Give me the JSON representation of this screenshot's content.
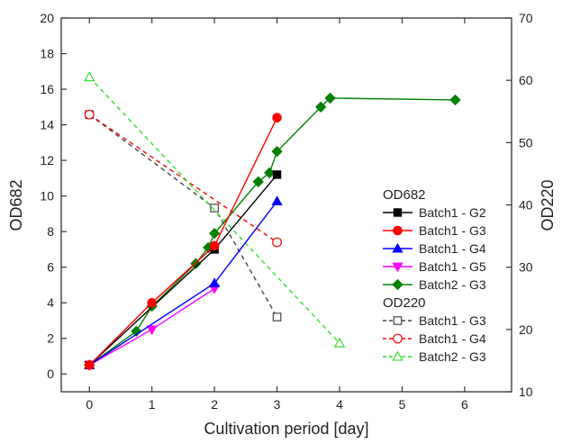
{
  "chart_data": {
    "type": "line",
    "title": "",
    "xlabel": "Cultivation period [day]",
    "ylabel_left": "OD682",
    "ylabel_right": "OD220",
    "xlim": [
      -0.45,
      6.75
    ],
    "ylim_left": [
      -1,
      20
    ],
    "ylim_right": [
      10,
      70
    ],
    "x_ticks": [
      0,
      1,
      2,
      3,
      4,
      5,
      6
    ],
    "y_ticks_left": [
      0,
      2,
      4,
      6,
      8,
      10,
      12,
      14,
      16,
      18,
      20
    ],
    "y_ticks_right": [
      10,
      20,
      30,
      40,
      50,
      60,
      70
    ],
    "grid": false,
    "legend_position": "right",
    "legend_groups": [
      {
        "title": "OD682",
        "series_indices": [
          0,
          1,
          2,
          3,
          4
        ]
      },
      {
        "title": "OD220",
        "series_indices": [
          5,
          6,
          7
        ]
      }
    ],
    "series": [
      {
        "name": "Batch1 - G2",
        "axis": "left",
        "color": "#000000",
        "marker": "square",
        "filled": true,
        "dashed": false,
        "x": [
          0,
          2,
          3
        ],
        "y": [
          0.5,
          7.0,
          11.2
        ]
      },
      {
        "name": "Batch1 - G3",
        "axis": "left",
        "color": "#ff0000",
        "marker": "circle",
        "filled": true,
        "dashed": false,
        "x": [
          0,
          1,
          2,
          3
        ],
        "y": [
          0.5,
          4.0,
          7.2,
          14.4
        ]
      },
      {
        "name": "Batch1 - G4",
        "axis": "left",
        "color": "#0000ff",
        "marker": "triangle-up",
        "filled": true,
        "dashed": false,
        "x": [
          0,
          2,
          3
        ],
        "y": [
          0.5,
          5.1,
          9.7
        ]
      },
      {
        "name": "Batch1 - G5",
        "axis": "left",
        "color": "#ff00ff",
        "marker": "triangle-down",
        "filled": true,
        "dashed": false,
        "x": [
          0,
          1,
          2
        ],
        "y": [
          0.5,
          2.5,
          4.8
        ]
      },
      {
        "name": "Batch2 - G3",
        "axis": "left",
        "color": "#008000",
        "marker": "diamond",
        "filled": true,
        "dashed": false,
        "x": [
          0,
          0.75,
          1,
          1.7,
          1.9,
          2,
          2.7,
          2.88,
          3,
          3.7,
          3.85,
          5.85
        ],
        "y": [
          0.5,
          2.4,
          3.8,
          6.2,
          7.1,
          7.9,
          10.8,
          11.3,
          12.5,
          15.0,
          15.5,
          15.4
        ]
      },
      {
        "name": "Batch1 - G3",
        "axis": "right",
        "color": "#444444",
        "marker": "square",
        "filled": false,
        "dashed": true,
        "x": [
          0,
          2,
          3
        ],
        "y": [
          54.5,
          39.5,
          22.0
        ]
      },
      {
        "name": "Batch1 - G4",
        "axis": "right",
        "color": "#ff0000",
        "marker": "circle",
        "filled": false,
        "dashed": true,
        "x": [
          0,
          3
        ],
        "y": [
          54.5,
          34.0
        ]
      },
      {
        "name": "Batch2 - G3",
        "axis": "right",
        "color": "#33dd33",
        "marker": "triangle-up",
        "filled": false,
        "dashed": true,
        "x": [
          0,
          4
        ],
        "y": [
          60.5,
          17.8
        ]
      }
    ]
  }
}
